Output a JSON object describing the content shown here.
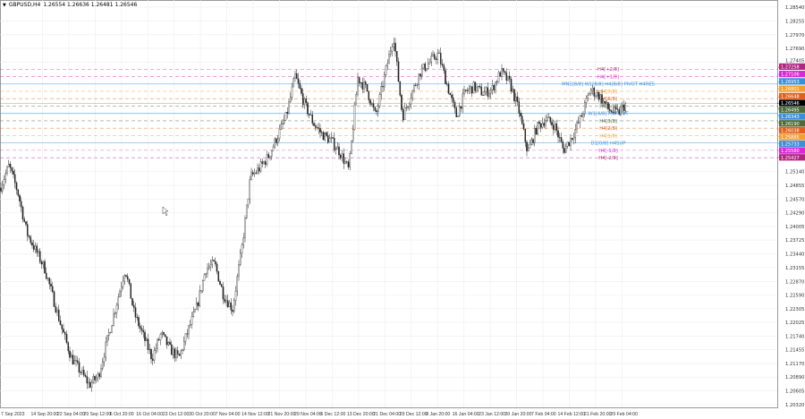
{
  "window": {
    "symbol_title": "GBPUSD,H4",
    "ohlc": "1.26554 1.26636 1.26481 1.26546"
  },
  "chart_data": {
    "type": "candlestick",
    "symbol": "GBPUSD",
    "timeframe": "H4",
    "ylim": [
      1.2032,
      1.2854
    ],
    "grid": true,
    "price_ticks": [
      "1.28540",
      "1.28255",
      "1.27970",
      "1.27690",
      "1.27405",
      "1.25140",
      "1.24855",
      "1.24570",
      "1.24290",
      "1.24005",
      "1.23725",
      "1.23440",
      "1.23155",
      "1.22870",
      "1.22590",
      "1.22305",
      "1.22025",
      "1.21740",
      "1.21455",
      "1.21170",
      "1.20890",
      "1.20605",
      "1.20320"
    ],
    "time_ticks": [
      "7 Sep 2023",
      "14 Sep 20:00",
      "22 Sep 04:00",
      "29 Sep 12:00",
      "6 Oct 20:00",
      "16 Oct 04:00",
      "23 Oct 12:00",
      "30 Oct 20:00",
      "7 Nov 04:00",
      "14 Nov 12:00",
      "21 Nov 20:00",
      "29 Nov 04:00",
      "6 Dec 12:00",
      "13 Dec 20:00",
      "21 Dec 04:00",
      "29 Dec 12:00",
      "8 Jan 20:00",
      "16 Jan 04:00",
      "23 Jan 12:00",
      "30 Jan 20:00",
      "7 Feb 04:00",
      "14 Feb 12:00",
      "21 Feb 20:00",
      "29 Feb 04:00"
    ],
    "approx_closes": [
      1.24801,
      1.25264,
      1.24708,
      1.23875,
      1.23505,
      1.23135,
      1.22487,
      1.21839,
      1.21284,
      1.21006,
      1.20729,
      1.20914,
      1.21654,
      1.22395,
      1.23135,
      1.2221,
      1.21747,
      1.21284,
      1.21784,
      1.21469,
      1.21284,
      1.21839,
      1.22339,
      1.23135,
      1.23228,
      1.2258,
      1.22302,
      1.23505,
      1.25023,
      1.25208,
      1.25449,
      1.25856,
      1.26282,
      1.27115,
      1.26559,
      1.26152,
      1.25912,
      1.25782,
      1.25541,
      1.25171,
      1.27078,
      1.26837,
      1.26282,
      1.27115,
      1.27948,
      1.26282,
      1.26745,
      1.27207,
      1.27392,
      1.27577,
      1.2693,
      1.26282,
      1.26782,
      1.26893,
      1.26763,
      1.26837,
      1.27207,
      1.26967,
      1.26411,
      1.25541,
      1.26041,
      1.26226,
      1.26097,
      1.25578,
      1.25875,
      1.26282,
      1.26837,
      1.26708,
      1.2643,
      1.26337,
      1.26546
    ],
    "current_price": {
      "value": 1.26546,
      "label": "1.26546",
      "color": "#000000"
    },
    "levels": [
      {
        "price": 1.27258,
        "label": "1.27258",
        "text": "H4[+2/8]",
        "color": "#b0287e"
      },
      {
        "price": 1.27106,
        "label": "1.27106",
        "text": "H4[+1/8]",
        "color": "#d62ad6"
      },
      {
        "price": 1.26953,
        "label": "1.26953",
        "text": "MN1[8/8] W1[8/8] H4[8/8] PIVOT H4RES",
        "color": "#3b8fd9"
      },
      {
        "price": 1.26801,
        "label": "1.26801",
        "text": "H4[7/8]",
        "color": "#f0a030"
      },
      {
        "price": 1.26648,
        "label": "1.26648",
        "text": "H4[6/8]",
        "color": "#e0601e"
      },
      {
        "price": 1.26495,
        "label": "1.26495",
        "text": "H4[5/8]",
        "color": "#4f6b3a"
      },
      {
        "price": 1.26343,
        "label": "1.26343",
        "text": "W1[4/8] H4PIVOT",
        "color": "#3b8fd9"
      },
      {
        "price": 1.2619,
        "label": "1.26190",
        "text": "H4[3/8]",
        "color": "#4f6b3a"
      },
      {
        "price": 1.26038,
        "label": "1.26038",
        "text": "H4[2/8]",
        "color": "#e0601e"
      },
      {
        "price": 1.25885,
        "label": "1.25885",
        "text": "H4[1/8]",
        "color": "#f0a030"
      },
      {
        "price": 1.25733,
        "label": "1.25733",
        "text": "D1[0/8] H4SUP",
        "color": "#3b8fd9"
      },
      {
        "price": 1.2558,
        "label": "1.25580",
        "text": "H4[-1/8]",
        "color": "#d62ad6"
      },
      {
        "price": 1.25427,
        "label": "1.25427",
        "text": "H4[-2/8]",
        "color": "#b0287e"
      }
    ],
    "colors": {
      "grid": "#eeeeee",
      "candle": "#222222",
      "axis": "#999999"
    }
  }
}
